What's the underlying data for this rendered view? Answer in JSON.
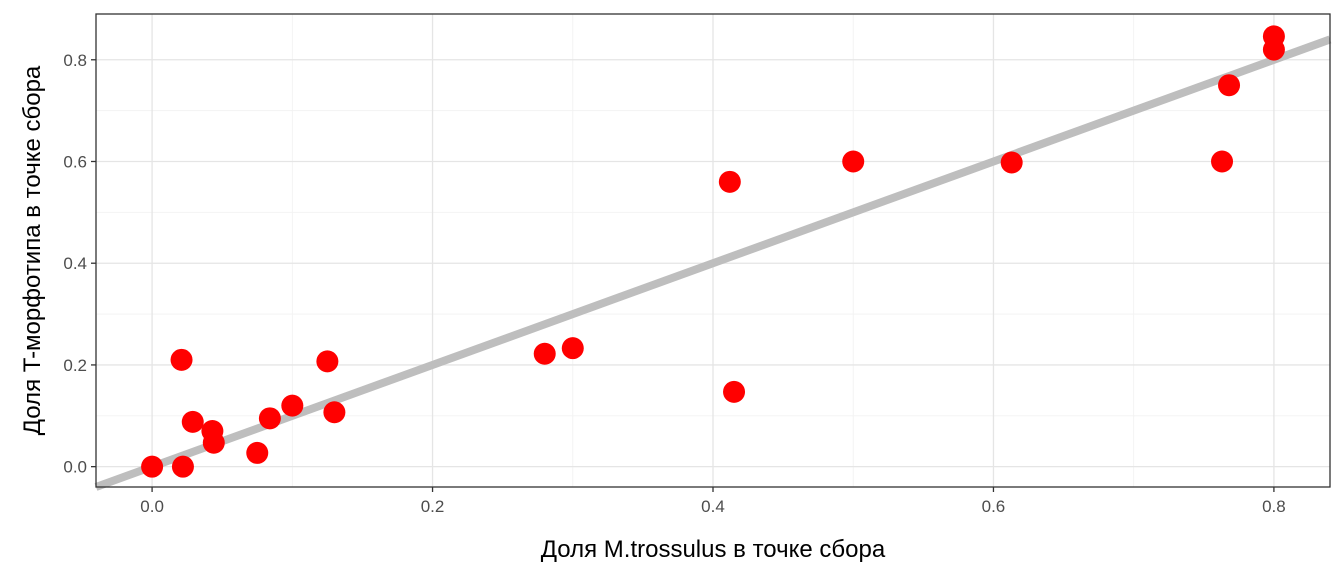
{
  "chart_data": {
    "type": "scatter",
    "title": "",
    "xlabel": "Доля M.trossulus в точке сбора",
    "ylabel": "Доля T-морфотипа в точке сбора",
    "xlim": [
      -0.04,
      0.84
    ],
    "ylim": [
      -0.04,
      0.89
    ],
    "x_ticks": [
      0.0,
      0.2,
      0.4,
      0.6,
      0.8
    ],
    "x_tick_labels": [
      "0.0",
      "0.2",
      "0.4",
      "0.6",
      "0.8"
    ],
    "y_ticks": [
      0.0,
      0.2,
      0.4,
      0.6,
      0.8
    ],
    "y_tick_labels": [
      "0.0",
      "0.2",
      "0.4",
      "0.6",
      "0.8"
    ],
    "grid": true,
    "point_color": "#ff0000",
    "line_color": "#bebebe",
    "reference_line": {
      "slope": 1,
      "intercept": 0
    },
    "points": [
      {
        "x": 0.0,
        "y": 0.0
      },
      {
        "x": 0.022,
        "y": 0.0
      },
      {
        "x": 0.021,
        "y": 0.21
      },
      {
        "x": 0.029,
        "y": 0.088
      },
      {
        "x": 0.043,
        "y": 0.07
      },
      {
        "x": 0.044,
        "y": 0.047
      },
      {
        "x": 0.075,
        "y": 0.027
      },
      {
        "x": 0.084,
        "y": 0.095
      },
      {
        "x": 0.1,
        "y": 0.12
      },
      {
        "x": 0.125,
        "y": 0.207
      },
      {
        "x": 0.13,
        "y": 0.107
      },
      {
        "x": 0.28,
        "y": 0.222
      },
      {
        "x": 0.3,
        "y": 0.233
      },
      {
        "x": 0.412,
        "y": 0.56
      },
      {
        "x": 0.415,
        "y": 0.147
      },
      {
        "x": 0.5,
        "y": 0.6
      },
      {
        "x": 0.613,
        "y": 0.598
      },
      {
        "x": 0.763,
        "y": 0.6
      },
      {
        "x": 0.768,
        "y": 0.75
      },
      {
        "x": 0.8,
        "y": 0.846
      },
      {
        "x": 0.8,
        "y": 0.82
      }
    ]
  }
}
